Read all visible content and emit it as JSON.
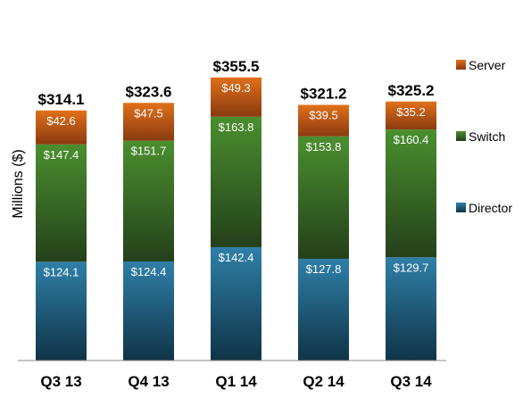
{
  "chart_data": {
    "type": "bar",
    "stacked": true,
    "categories": [
      "Q3 13",
      "Q4 13",
      "Q1 14",
      "Q2 14",
      "Q3 14"
    ],
    "series": [
      {
        "name": "Director",
        "values": [
          124.1,
          124.4,
          142.4,
          127.8,
          129.7
        ],
        "labels": [
          "$124.1",
          "$124.4",
          "$142.4",
          "$127.8",
          "$129.7"
        ],
        "color_top": "#2f7fa8",
        "color_bottom": "#0f3447"
      },
      {
        "name": "Switch",
        "values": [
          147.4,
          151.7,
          163.8,
          153.8,
          160.4
        ],
        "labels": [
          "$147.4",
          "$151.7",
          "$163.8",
          "$153.8",
          "$160.4"
        ],
        "color_top": "#4a8f2f",
        "color_bottom": "#24401a"
      },
      {
        "name": "Server",
        "values": [
          42.6,
          47.5,
          49.3,
          39.5,
          35.2
        ],
        "labels": [
          "$42.6",
          "$47.5",
          "$49.3",
          "$39.5",
          "$35.2"
        ],
        "color_top": "#e0701a",
        "color_bottom": "#8a3a10"
      }
    ],
    "totals": [
      "$314.1",
      "$323.6",
      "$355.5",
      "$321.2",
      "$325.2"
    ],
    "ylabel": "Millions ($)",
    "xlabel": "",
    "ylim": [
      0,
      380
    ],
    "grid": false,
    "legend_position": "right",
    "legend": [
      "Server",
      "Switch",
      "Director"
    ]
  }
}
